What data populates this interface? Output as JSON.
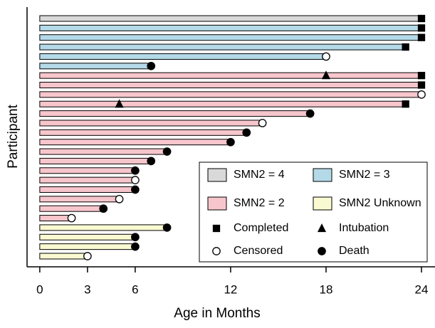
{
  "chart_data": {
    "type": "swimmer",
    "xlabel": "Age in Months",
    "ylabel": "Participant",
    "xlim": [
      -0.8,
      24.85
    ],
    "xticks": [
      0,
      3,
      6,
      12,
      18,
      24
    ],
    "groups": [
      {
        "name": "SMN2 = 4",
        "color": "#d9d9d9"
      },
      {
        "name": "SMN2 = 3",
        "color": "#b4dae8"
      },
      {
        "name": "SMN2 = 2",
        "color": "#f7c6cc"
      },
      {
        "name": "SMN2 Unknown",
        "color": "#fafad2"
      }
    ],
    "markers": [
      {
        "name": "Completed",
        "shape": "square"
      },
      {
        "name": "Intubation",
        "shape": "triangle"
      },
      {
        "name": "Censored",
        "shape": "open-circle"
      },
      {
        "name": "Death",
        "shape": "circle"
      }
    ],
    "group": [
      0,
      1,
      1,
      1,
      1,
      1,
      2,
      2,
      2,
      2,
      2,
      2,
      2,
      2,
      2,
      2,
      2,
      2,
      2,
      2,
      2,
      2,
      3,
      3,
      3,
      3
    ],
    "values": [
      24,
      24,
      24,
      23,
      18,
      7,
      24,
      24,
      24,
      23,
      17,
      14,
      13,
      12,
      8,
      7,
      6,
      6,
      6,
      5,
      4,
      2,
      8,
      6,
      6,
      3
    ],
    "outcome": [
      0,
      0,
      0,
      0,
      2,
      3,
      0,
      0,
      2,
      0,
      3,
      2,
      3,
      3,
      3,
      3,
      3,
      2,
      3,
      2,
      3,
      2,
      3,
      3,
      3,
      2
    ],
    "intubation": [
      null,
      null,
      null,
      null,
      null,
      null,
      18,
      null,
      null,
      5,
      null,
      null,
      null,
      null,
      null,
      null,
      null,
      null,
      null,
      null,
      null,
      null,
      null,
      null,
      null,
      null
    ]
  }
}
